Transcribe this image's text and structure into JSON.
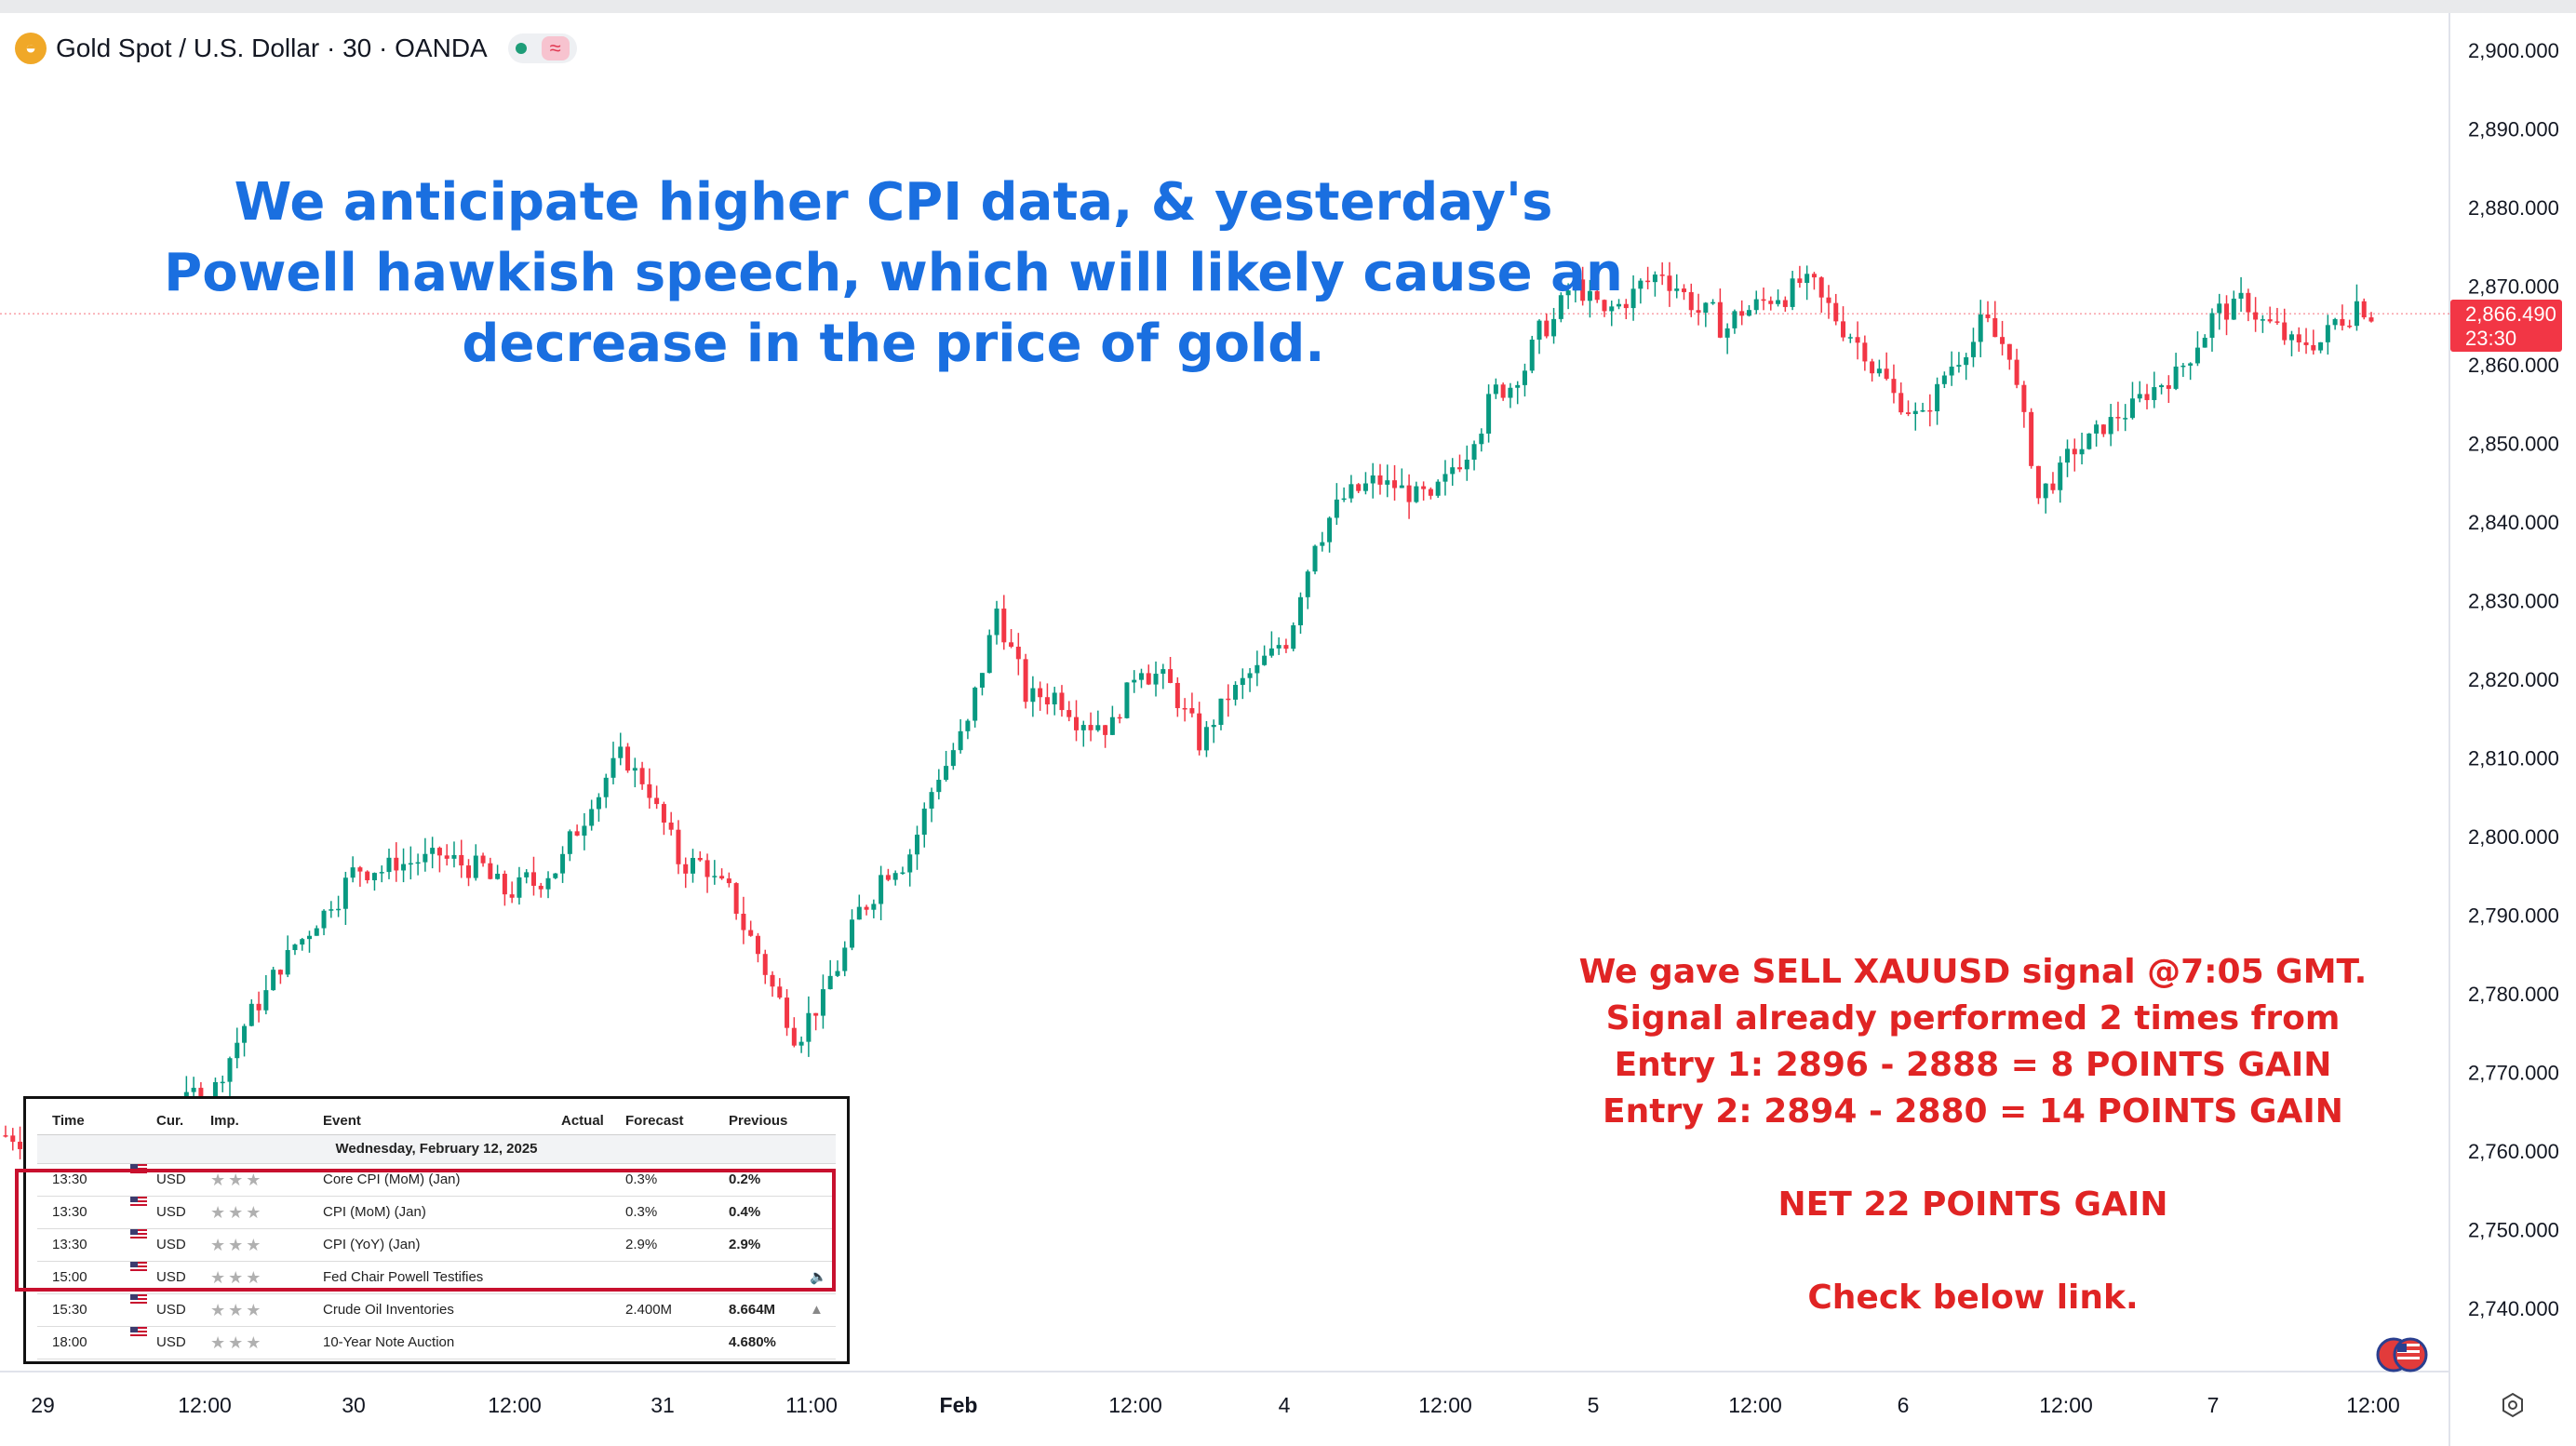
{
  "symbol": {
    "title": "Gold Spot / U.S. Dollar · 30 · OANDA",
    "coin_icon": "gold-coin-icon",
    "status_icon": "market-status-icon",
    "wave_icon": "approx-icon"
  },
  "headline": "We anticipate higher CPI data, & yesterday's  Powell hawkish speech, which will likely cause an decrease in the price of gold.",
  "signal_lines": [
    "We gave SELL XAUUSD signal @7:05 GMT.",
    "Signal already performed 2 times from",
    "Entry 1: 2896 - 2888 = 8 POINTS GAIN",
    "Entry 2: 2894 - 2880 = 14 POINTS GAIN",
    "",
    "NET 22 POINTS GAIN",
    "",
    "Check below link."
  ],
  "price_badge": {
    "price": "2,866.490",
    "countdown": "23:30"
  },
  "calendar": {
    "headers": {
      "time": "Time",
      "cur": "Cur.",
      "imp": "Imp.",
      "event": "Event",
      "actual": "Actual",
      "forecast": "Forecast",
      "previous": "Previous"
    },
    "date": "Wednesday, February 12, 2025",
    "rows": [
      {
        "time": "13:30",
        "cur": "USD",
        "imp": "★★★",
        "event": "Core CPI (MoM) (Jan)",
        "actual": "",
        "forecast": "0.3%",
        "previous": "0.2%",
        "bell": ""
      },
      {
        "time": "13:30",
        "cur": "USD",
        "imp": "★★★",
        "event": "CPI (MoM) (Jan)",
        "actual": "",
        "forecast": "0.3%",
        "previous": "0.4%",
        "bell": ""
      },
      {
        "time": "13:30",
        "cur": "USD",
        "imp": "★★★",
        "event": "CPI (YoY) (Jan)",
        "actual": "",
        "forecast": "2.9%",
        "previous": "2.9%",
        "bell": ""
      },
      {
        "time": "15:00",
        "cur": "USD",
        "imp": "★★★",
        "event": "Fed Chair Powell Testifies",
        "actual": "",
        "forecast": "",
        "previous": "",
        "bell": "🔈"
      },
      {
        "time": "15:30",
        "cur": "USD",
        "imp": "★★★",
        "event": "Crude Oil Inventories",
        "actual": "",
        "forecast": "2.400M",
        "previous": "8.664M",
        "bell": "▲"
      },
      {
        "time": "18:00",
        "cur": "USD",
        "imp": "★★★",
        "event": "10-Year Note Auction",
        "actual": "",
        "forecast": "",
        "previous": "4.680%",
        "bell": ""
      }
    ]
  },
  "chart_data": {
    "type": "candlestick",
    "title": "Gold Spot / U.S. Dollar · 30 · OANDA",
    "xlabel": "",
    "ylabel": "",
    "ylim": [
      2732,
      2906
    ],
    "y_ticks": [
      "2,900.000",
      "2,890.000",
      "2,880.000",
      "2,870.000",
      "2,860.000",
      "2,850.000",
      "2,840.000",
      "2,830.000",
      "2,820.000",
      "2,810.000",
      "2,800.000",
      "2,790.000",
      "2,780.000",
      "2,770.000",
      "2,760.000",
      "2,750.000",
      "2,740.000"
    ],
    "y_tick_values": [
      2900,
      2890,
      2880,
      2870,
      2860,
      2850,
      2840,
      2830,
      2820,
      2810,
      2800,
      2790,
      2780,
      2770,
      2760,
      2750,
      2740
    ],
    "x_ticks": [
      "29",
      "12:00",
      "30",
      "12:00",
      "31",
      "11:00",
      "Feb",
      "12:00",
      "4",
      "12:00",
      "5",
      "12:00",
      "6",
      "12:00",
      "7",
      "12:00"
    ],
    "x_tick_bold": [
      false,
      false,
      false,
      false,
      false,
      false,
      true,
      false,
      false,
      false,
      false,
      false,
      false,
      false,
      false,
      false
    ],
    "last_price": 2866.49,
    "path_anchors": [
      [
        0,
        2762
      ],
      [
        6,
        2762
      ],
      [
        8,
        2762
      ],
      [
        14,
        2768
      ],
      [
        16,
        2776
      ],
      [
        18,
        2782
      ],
      [
        20,
        2787
      ],
      [
        22,
        2792
      ],
      [
        24,
        2796
      ],
      [
        26,
        2796
      ],
      [
        28,
        2797
      ],
      [
        30,
        2797
      ],
      [
        32,
        2796
      ],
      [
        34,
        2793
      ],
      [
        36,
        2794
      ],
      [
        38,
        2797
      ],
      [
        40,
        2805
      ],
      [
        42,
        2810
      ],
      [
        44,
        2806
      ],
      [
        46,
        2797
      ],
      [
        48,
        2796
      ],
      [
        50,
        2791
      ],
      [
        52,
        2783
      ],
      [
        54,
        2775
      ],
      [
        56,
        2779
      ],
      [
        58,
        2788
      ],
      [
        60,
        2795
      ],
      [
        62,
        2798
      ],
      [
        64,
        2808
      ],
      [
        66,
        2814
      ],
      [
        68,
        2829
      ],
      [
        70,
        2818
      ],
      [
        72,
        2818
      ],
      [
        74,
        2815
      ],
      [
        76,
        2814
      ],
      [
        78,
        2822
      ],
      [
        80,
        2819
      ],
      [
        82,
        2812
      ],
      [
        84,
        2818
      ],
      [
        86,
        2821
      ],
      [
        88,
        2825
      ],
      [
        90,
        2838
      ],
      [
        92,
        2843
      ],
      [
        94,
        2845
      ],
      [
        96,
        2844
      ],
      [
        98,
        2842
      ],
      [
        100,
        2848
      ],
      [
        102,
        2855
      ],
      [
        104,
        2859
      ],
      [
        106,
        2865
      ],
      [
        108,
        2870
      ],
      [
        110,
        2866
      ],
      [
        112,
        2869
      ],
      [
        114,
        2872
      ],
      [
        116,
        2868
      ],
      [
        118,
        2865
      ],
      [
        120,
        2867
      ],
      [
        122,
        2869
      ],
      [
        124,
        2870
      ],
      [
        126,
        2866
      ],
      [
        128,
        2862
      ],
      [
        130,
        2856
      ],
      [
        132,
        2853
      ],
      [
        134,
        2860
      ],
      [
        136,
        2865
      ],
      [
        138,
        2862
      ],
      [
        140,
        2843
      ],
      [
        142,
        2848
      ],
      [
        144,
        2851
      ],
      [
        146,
        2854
      ],
      [
        148,
        2857
      ],
      [
        150,
        2860
      ],
      [
        152,
        2866
      ],
      [
        154,
        2868
      ],
      [
        156,
        2865
      ],
      [
        158,
        2862
      ],
      [
        160,
        2864
      ],
      [
        162,
        2868
      ],
      [
        163,
        2866.49
      ]
    ]
  }
}
